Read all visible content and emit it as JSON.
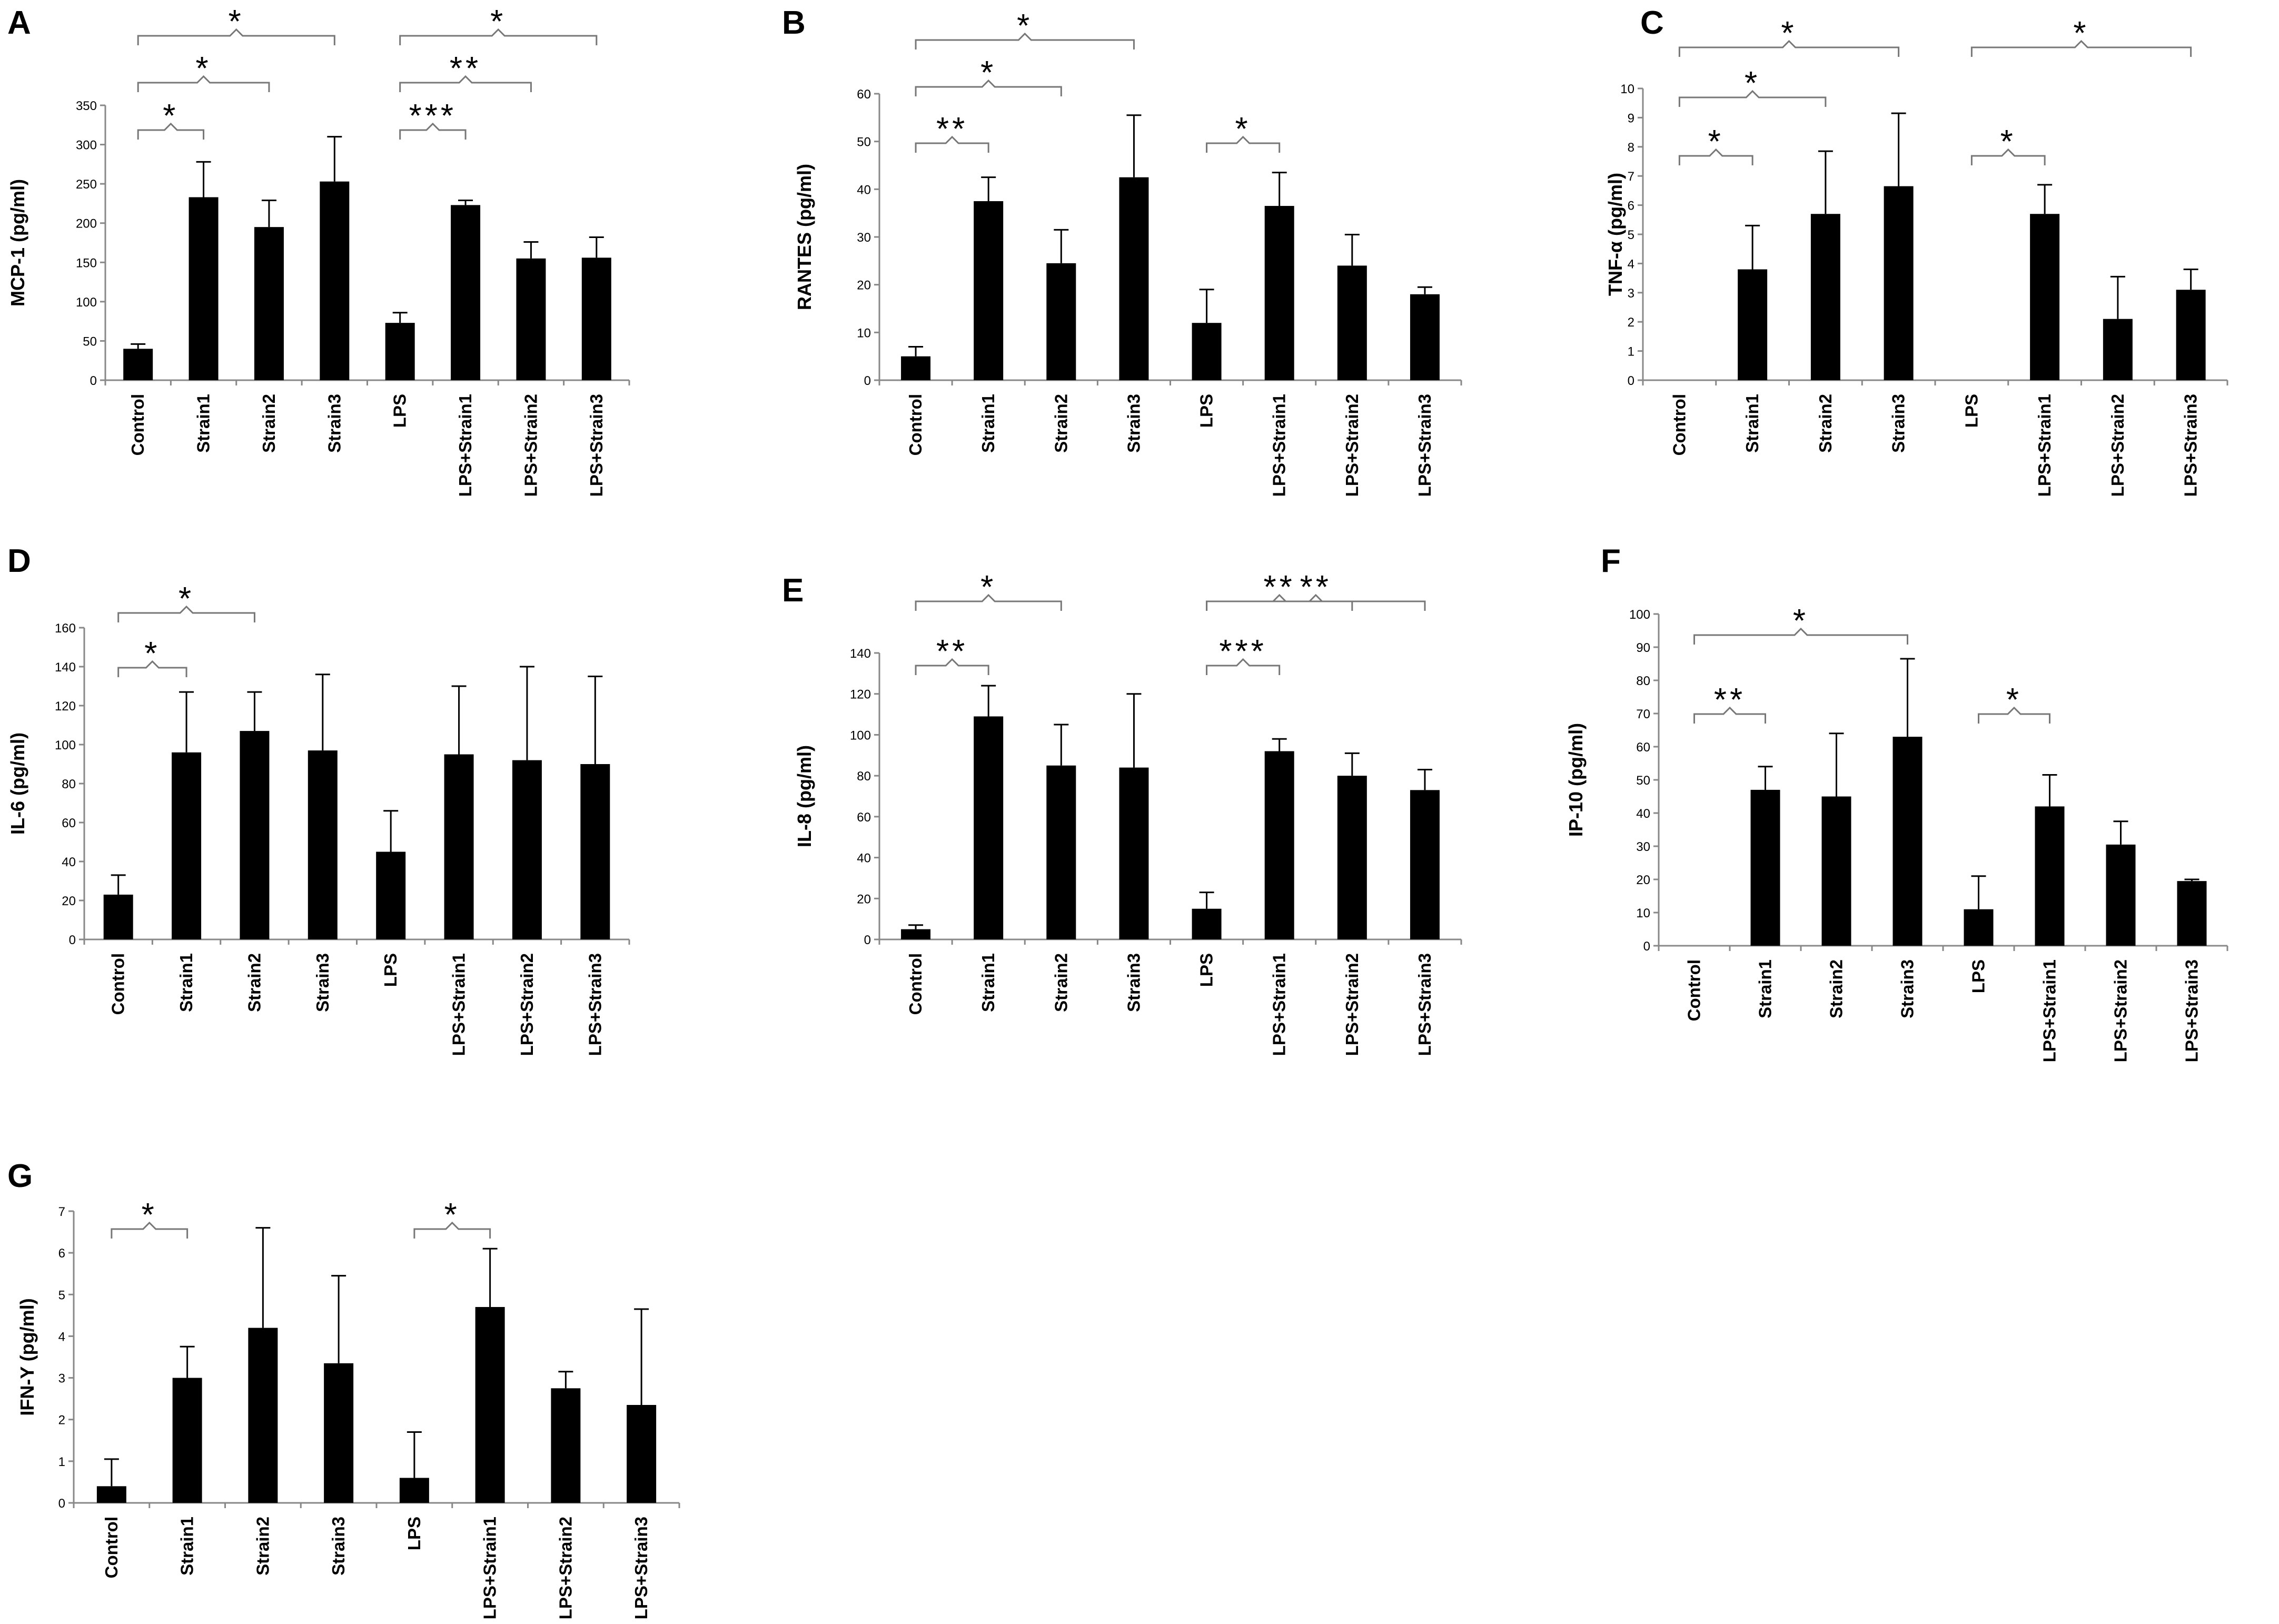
{
  "figure": {
    "categories": [
      "Control",
      "Strain1",
      "Strain2",
      "Strain3",
      "LPS",
      "LPS+Strain1",
      "LPS+Strain2",
      "LPS+Strain3"
    ]
  },
  "chart_data": [
    {
      "type": "bar",
      "panel": "A",
      "title": "",
      "ylabel": "MCP-1 (pg/ml)",
      "ylim": [
        0,
        350
      ],
      "yticks": [
        0,
        50,
        100,
        150,
        200,
        250,
        300,
        350
      ],
      "categories": [
        "Control",
        "Strain1",
        "Strain2",
        "Strain3",
        "LPS",
        "LPS+Strain1",
        "LPS+Strain2",
        "LPS+Strain3"
      ],
      "values": [
        40,
        233,
        195,
        253,
        73,
        223,
        155,
        156
      ],
      "errors": [
        6,
        45,
        34,
        57,
        13,
        6,
        21,
        26
      ],
      "significance": [
        {
          "from": 0,
          "to": 1,
          "label": "*"
        },
        {
          "from": 0,
          "to": 2,
          "label": "*"
        },
        {
          "from": 0,
          "to": 3,
          "label": "*"
        },
        {
          "from": 4,
          "to": 5,
          "label": "***"
        },
        {
          "from": 4,
          "to": 6,
          "label": "**"
        },
        {
          "from": 4,
          "to": 7,
          "label": "*"
        }
      ]
    },
    {
      "type": "bar",
      "panel": "B",
      "title": "",
      "ylabel": "RANTES (pg/ml)",
      "ylim": [
        0,
        60
      ],
      "yticks": [
        0,
        10,
        20,
        30,
        40,
        50,
        60
      ],
      "categories": [
        "Control",
        "Strain1",
        "Strain2",
        "Strain3",
        "LPS",
        "LPS+Strain1",
        "LPS+Strain2",
        "LPS+Strain3"
      ],
      "values": [
        5,
        37.5,
        24.5,
        42.5,
        12,
        36.5,
        24,
        18
      ],
      "errors": [
        2,
        5,
        7,
        13,
        7,
        7,
        6.5,
        1.5
      ],
      "significance": [
        {
          "from": 0,
          "to": 1,
          "label": "**"
        },
        {
          "from": 0,
          "to": 2,
          "label": "*"
        },
        {
          "from": 0,
          "to": 3,
          "label": "*"
        },
        {
          "from": 4,
          "to": 5,
          "label": "*"
        }
      ]
    },
    {
      "type": "bar",
      "panel": "C",
      "title": "",
      "ylabel": "TNF-α (pg/ml)",
      "ylim": [
        0,
        10
      ],
      "yticks": [
        0,
        1,
        2,
        3,
        4,
        5,
        6,
        7,
        8,
        9,
        10
      ],
      "categories": [
        "Control",
        "Strain1",
        "Strain2",
        "Strain3",
        "LPS",
        "LPS+Strain1",
        "LPS+Strain2",
        "LPS+Strain3"
      ],
      "values": [
        0,
        3.8,
        5.7,
        6.65,
        0,
        5.7,
        2.1,
        3.1
      ],
      "errors": [
        0,
        1.5,
        2.15,
        2.5,
        0,
        1.0,
        1.45,
        0.7
      ],
      "significance": [
        {
          "from": 0,
          "to": 1,
          "label": "*"
        },
        {
          "from": 0,
          "to": 2,
          "label": "*"
        },
        {
          "from": 0,
          "to": 3,
          "label": "*"
        },
        {
          "from": 4,
          "to": 5,
          "label": "*"
        },
        {
          "from": 4,
          "to": 7,
          "label": "*"
        }
      ]
    },
    {
      "type": "bar",
      "panel": "D",
      "title": "",
      "ylabel": "IL-6 (pg/ml)",
      "ylim": [
        0,
        160
      ],
      "yticks": [
        0,
        20,
        40,
        60,
        80,
        100,
        120,
        140,
        160
      ],
      "categories": [
        "Control",
        "Strain1",
        "Strain2",
        "Strain3",
        "LPS",
        "LPS+Strain1",
        "LPS+Strain2",
        "LPS+Strain3"
      ],
      "values": [
        23,
        96,
        107,
        97,
        45,
        95,
        92,
        90
      ],
      "errors": [
        10,
        31,
        20,
        39,
        21,
        35,
        48,
        45
      ],
      "significance": [
        {
          "from": 0,
          "to": 1,
          "label": "*"
        },
        {
          "from": 0,
          "to": 2,
          "label": "*"
        }
      ]
    },
    {
      "type": "bar",
      "panel": "E",
      "title": "",
      "ylabel": "IL-8 (pg/ml)",
      "ylim": [
        0,
        140
      ],
      "yticks": [
        0,
        20,
        40,
        60,
        80,
        100,
        120,
        140
      ],
      "categories": [
        "Control",
        "Strain1",
        "Strain2",
        "Strain3",
        "LPS",
        "LPS+Strain1",
        "LPS+Strain2",
        "LPS+Strain3"
      ],
      "values": [
        5,
        109,
        85,
        84,
        15,
        92,
        80,
        73
      ],
      "errors": [
        2,
        15,
        20,
        36,
        8,
        6,
        11,
        10
      ],
      "significance": [
        {
          "from": 0,
          "to": 1,
          "label": "**"
        },
        {
          "from": 0,
          "to": 2,
          "label": "*"
        },
        {
          "from": 4,
          "to": 5,
          "label": "***"
        },
        {
          "from": 4,
          "to": 6,
          "label": "**"
        },
        {
          "from": 4,
          "to": 7,
          "label": "**"
        }
      ]
    },
    {
      "type": "bar",
      "panel": "F",
      "title": "",
      "ylabel": "IP-10 (pg/ml)",
      "ylim": [
        0,
        100
      ],
      "yticks": [
        0,
        10,
        20,
        30,
        40,
        50,
        60,
        70,
        80,
        90,
        100
      ],
      "categories": [
        "Control",
        "Strain1",
        "Strain2",
        "Strain3",
        "LPS",
        "LPS+Strain1",
        "LPS+Strain2",
        "LPS+Strain3"
      ],
      "values": [
        0,
        47,
        45,
        63,
        11,
        42,
        30.5,
        19.5
      ],
      "errors": [
        0,
        7,
        19,
        23.5,
        10,
        9.5,
        7,
        0.5
      ],
      "significance": [
        {
          "from": 0,
          "to": 1,
          "label": "**"
        },
        {
          "from": 0,
          "to": 3,
          "label": "*"
        },
        {
          "from": 4,
          "to": 5,
          "label": "*"
        }
      ]
    },
    {
      "type": "bar",
      "panel": "G",
      "title": "",
      "ylabel": "IFN-Y (pg/ml)",
      "ylim": [
        0,
        7
      ],
      "yticks": [
        0,
        1,
        2,
        3,
        4,
        5,
        6,
        7
      ],
      "categories": [
        "Control",
        "Strain1",
        "Strain2",
        "Strain3",
        "LPS",
        "LPS+Strain1",
        "LPS+Strain2",
        "LPS+Strain3"
      ],
      "values": [
        0.4,
        3.0,
        4.2,
        3.35,
        0.6,
        4.7,
        2.75,
        2.35
      ],
      "errors": [
        0.65,
        0.75,
        2.4,
        2.1,
        1.1,
        1.4,
        0.4,
        2.3
      ],
      "significance": [
        {
          "from": 0,
          "to": 1,
          "label": "*"
        },
        {
          "from": 4,
          "to": 5,
          "label": "*"
        }
      ]
    }
  ]
}
